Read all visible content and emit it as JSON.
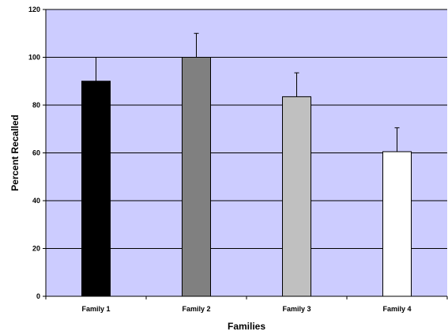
{
  "chart_data": {
    "type": "bar",
    "title": "",
    "xlabel": "Families",
    "ylabel": "Percent Recalled",
    "ylim": [
      0,
      120
    ],
    "yticks": [
      0,
      20,
      40,
      60,
      80,
      100,
      120
    ],
    "grid": true,
    "categories": [
      "Family 1",
      "Family 2",
      "Family 3",
      "Family 4"
    ],
    "values": [
      90,
      100,
      83.5,
      60.5
    ],
    "error": [
      10,
      10,
      10,
      10
    ],
    "colors": {
      "plot_background": "#ccccff",
      "bars": [
        "#000000",
        "#808080",
        "#c0c0c0",
        "#ffffff"
      ]
    }
  }
}
